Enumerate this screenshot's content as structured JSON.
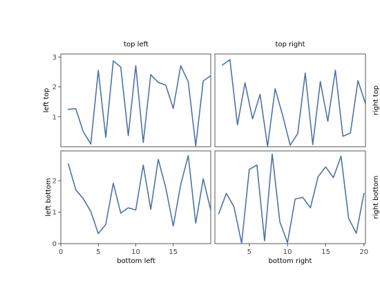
{
  "chart_data": [
    {
      "type": "line",
      "title": "top left",
      "ylabel": "left top",
      "xlabel": "",
      "xlim": [
        0,
        20
      ],
      "ylim": [
        0,
        3.1
      ],
      "yticks": [
        1,
        2,
        3
      ],
      "xticks": [],
      "grid": false,
      "series": [
        {
          "color": "#4c72a8",
          "x": [
            1,
            2,
            3,
            4,
            5,
            6,
            7,
            8,
            9,
            10,
            11,
            12,
            13,
            14,
            15,
            16,
            17,
            18,
            19,
            20
          ],
          "y": [
            1.25,
            1.27,
            0.5,
            0.09,
            2.55,
            0.31,
            2.87,
            2.66,
            0.37,
            2.71,
            0.14,
            2.41,
            2.15,
            2.06,
            1.28,
            2.71,
            2.17,
            0.03,
            2.2,
            2.37
          ]
        }
      ]
    },
    {
      "type": "line",
      "title": "top right",
      "ylabel": "right top",
      "xlabel": "",
      "xlim": [
        0,
        20
      ],
      "ylim": [
        0,
        3.1
      ],
      "yticks": [],
      "xticks": [],
      "grid": false,
      "series": [
        {
          "color": "#4c72a8",
          "x": [
            1,
            2,
            3,
            4,
            5,
            6,
            7,
            8,
            9,
            10,
            11,
            12,
            13,
            14,
            15,
            16,
            17,
            18,
            19,
            20
          ],
          "y": [
            2.73,
            2.91,
            0.73,
            2.14,
            0.93,
            1.75,
            0.01,
            1.94,
            1.05,
            0.05,
            0.44,
            2.46,
            0.07,
            2.18,
            0.85,
            2.56,
            0.35,
            0.46,
            2.21,
            1.44
          ]
        }
      ]
    },
    {
      "type": "line",
      "title": "",
      "ylabel": "left bottom",
      "xlabel": "bottom left",
      "xlim": [
        0,
        20
      ],
      "ylim": [
        0,
        2.95
      ],
      "yticks": [
        0,
        1,
        2
      ],
      "xticks": [
        0,
        5,
        10,
        15
      ],
      "grid": false,
      "series": [
        {
          "color": "#4c72a8",
          "x": [
            1,
            2,
            3,
            4,
            5,
            6,
            7,
            8,
            9,
            10,
            11,
            12,
            13,
            14,
            15,
            16,
            17,
            18,
            19,
            20
          ],
          "y": [
            2.54,
            1.71,
            1.43,
            1.02,
            0.32,
            0.61,
            1.92,
            0.97,
            1.14,
            1.07,
            2.5,
            1.09,
            2.68,
            1.78,
            0.56,
            1.88,
            2.8,
            0.65,
            2.06,
            1.07
          ]
        }
      ]
    },
    {
      "type": "line",
      "title": "",
      "ylabel": "right bottom",
      "xlabel": "bottom right",
      "xlim": [
        0.5,
        20.2
      ],
      "ylim": [
        0,
        2.95
      ],
      "yticks": [],
      "xticks": [
        5,
        10,
        15,
        20
      ],
      "grid": false,
      "series": [
        {
          "color": "#4c72a8",
          "x": [
            1,
            2,
            3,
            4,
            5,
            6,
            7,
            8,
            9,
            10,
            11,
            12,
            13,
            14,
            15,
            16,
            17,
            18,
            19,
            20
          ],
          "y": [
            0.95,
            1.6,
            1.17,
            0.01,
            2.36,
            2.5,
            0.09,
            2.85,
            0.69,
            0.03,
            1.42,
            1.47,
            1.14,
            2.13,
            2.44,
            2.1,
            2.78,
            0.8,
            0.33,
            1.6
          ]
        }
      ]
    }
  ]
}
